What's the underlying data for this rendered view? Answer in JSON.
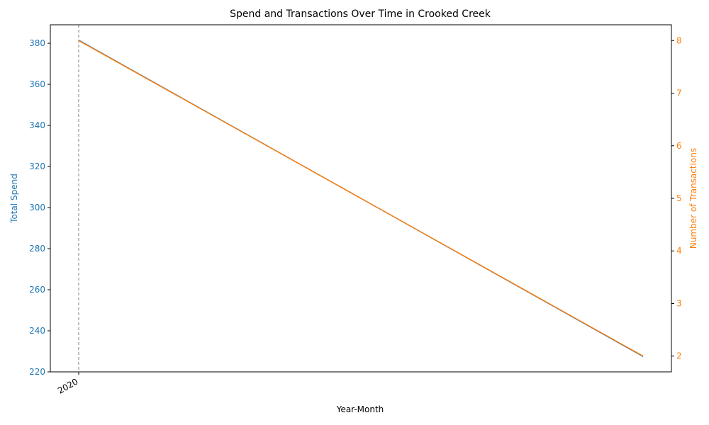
{
  "chart_data": {
    "type": "line",
    "title": "Spend and Transactions Over Time in Crooked Creek",
    "xlabel": "Year-Month",
    "x_tick_labels": [
      "2020"
    ],
    "y_left": {
      "label": "Total Spend",
      "color": "#1f77b4",
      "ylim": [
        220,
        389
      ],
      "ticks": [
        220,
        240,
        260,
        280,
        300,
        320,
        340,
        360,
        380
      ]
    },
    "y_right": {
      "label": "Number of Transactions",
      "color": "#ff7f0e",
      "ylim": [
        1.7,
        8.3
      ],
      "ticks": [
        2,
        3,
        4,
        5,
        6,
        7,
        8
      ]
    },
    "series": [
      {
        "axis": "left",
        "color": "#1f77b4",
        "x": [
          0,
          1
        ],
        "values": [
          381.5,
          227.5
        ]
      },
      {
        "axis": "right",
        "color": "#ff7f0e",
        "x": [
          0,
          1
        ],
        "values": [
          8,
          2
        ]
      }
    ],
    "vertical_line_at_x": 0,
    "grid": false
  }
}
